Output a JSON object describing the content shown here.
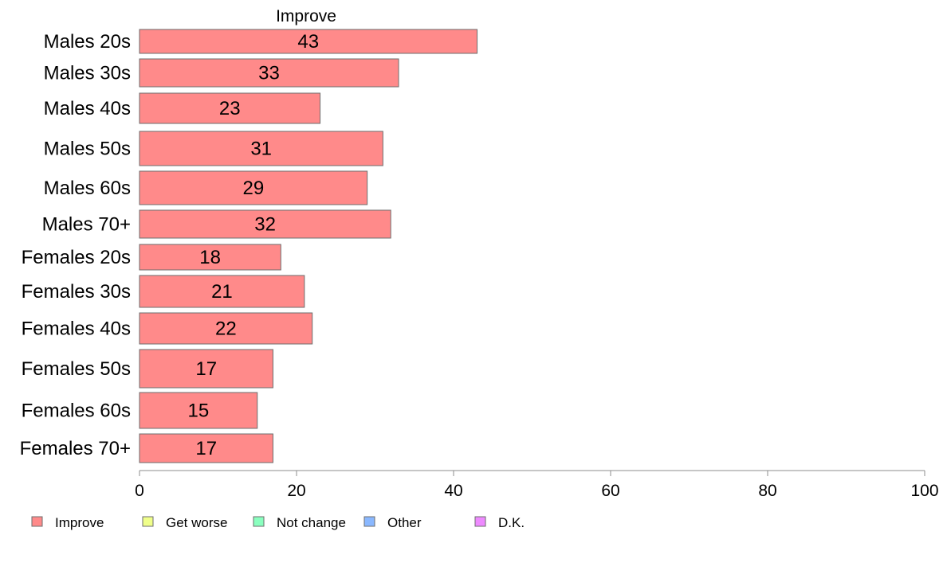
{
  "chart_data": {
    "type": "bar",
    "orientation": "horizontal",
    "title": "Improve",
    "xlabel": "",
    "ylabel": "",
    "categories": [
      "Males 20s",
      "Males 30s",
      "Males 40s",
      "Males 50s",
      "Males 60s",
      "Males 70+",
      "Females 20s",
      "Females 30s",
      "Females 40s",
      "Females 50s",
      "Females 60s",
      "Females 70+"
    ],
    "series": [
      {
        "name": "Improve",
        "color": "#ff8a8a",
        "values": [
          43,
          33,
          23,
          31,
          29,
          32,
          18,
          21,
          22,
          17,
          15,
          17
        ],
        "data_labels": [
          "43",
          "33",
          "23",
          "31",
          "29",
          "32",
          "18",
          "21",
          "22",
          "17",
          "15",
          "17"
        ]
      }
    ],
    "xlim": [
      0,
      100
    ],
    "x_ticks": [
      0,
      20,
      40,
      60,
      80,
      100
    ],
    "x_tick_labels": [
      "0",
      "20",
      "40",
      "60",
      "80",
      "100"
    ],
    "grid": false,
    "legend": {
      "position": "bottom-left",
      "entries": [
        {
          "label": "Improve",
          "color": "#ff8a8a"
        },
        {
          "label": "Get worse",
          "color": "#f0ff8a"
        },
        {
          "label": "Not change",
          "color": "#8affbf"
        },
        {
          "label": "Other",
          "color": "#8ab8ff"
        },
        {
          "label": "D.K.",
          "color": "#ee8aff"
        }
      ]
    }
  }
}
